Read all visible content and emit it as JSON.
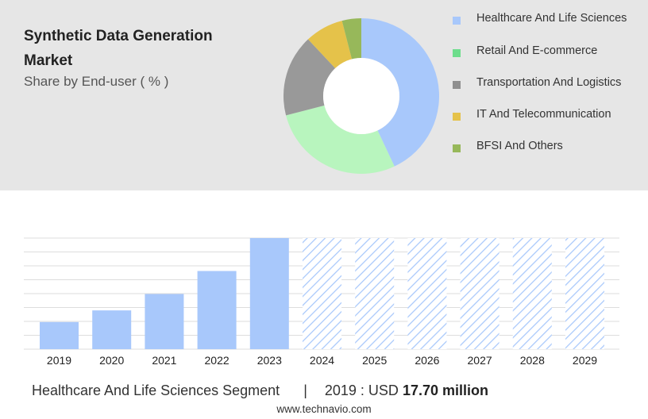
{
  "title": "Synthetic Data Generation Market",
  "subtitle": "Share by End-user ( % )",
  "chart_data": [
    {
      "type": "pie",
      "title": "Synthetic Data Generation Market",
      "subtitle": "Share by End-user ( % )",
      "categories": [
        "Healthcare And Life Sciences",
        "Retail And E-commerce",
        "Transportation And Logistics",
        "IT And Telecommunication",
        "BFSI And Others"
      ],
      "values": [
        43,
        28,
        17,
        8,
        4
      ],
      "colors": [
        "#a8c8fb",
        "#b8f5be",
        "#999999",
        "#e5c24a",
        "#97b85a"
      ],
      "legend_position": "right",
      "donut": true
    },
    {
      "type": "bar",
      "categories": [
        "2019",
        "2020",
        "2021",
        "2022",
        "2023",
        "2024",
        "2025",
        "2026",
        "2027",
        "2028",
        "2029"
      ],
      "series": [
        {
          "values": [
            17.7,
            25.3,
            36.0,
            51.0,
            72.5,
            72.5,
            72.5,
            72.5,
            72.5,
            72.5,
            72.5
          ]
        }
      ],
      "forecast_from": "2024",
      "ylim": [
        0,
        72.5
      ],
      "grid": true,
      "bar_color": "#a8c8fb",
      "forecast_style": "hatched"
    }
  ],
  "legend": [
    {
      "label": "Healthcare And Life Sciences",
      "color": "#a8c8fb"
    },
    {
      "label": "Retail And E-commerce",
      "color": "#6ddd8c"
    },
    {
      "label": "Transportation And Logistics",
      "color": "#8f8f8f"
    },
    {
      "label": "IT And Telecommunication",
      "color": "#e5c24a"
    },
    {
      "label": "BFSI And Others",
      "color": "#97b85a"
    }
  ],
  "footer": {
    "segment": "Healthcare And Life Sciences Segment",
    "separator": "|",
    "year_currency": "2019 : USD",
    "value": "17.70 million"
  },
  "website": "www.technavio.com"
}
